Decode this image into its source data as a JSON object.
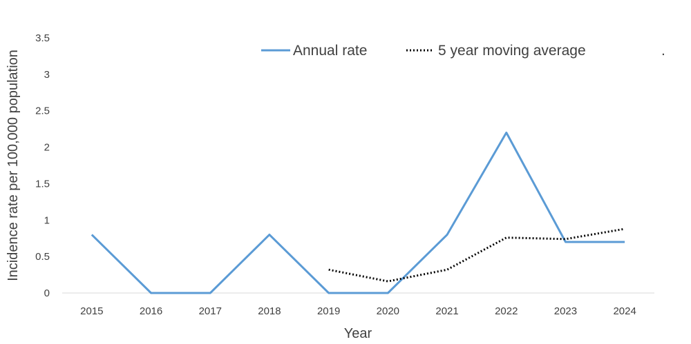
{
  "chart_data": {
    "type": "line",
    "categories": [
      "2015",
      "2016",
      "2017",
      "2018",
      "2019",
      "2020",
      "2021",
      "2022",
      "2023",
      "2024"
    ],
    "series": [
      {
        "name": "Annual rate",
        "color": "#5b9bd5",
        "style": "solid",
        "values": [
          0.8,
          0,
          0,
          0.8,
          0,
          0,
          0.8,
          2.2,
          0.7,
          0.7
        ]
      },
      {
        "name": "5 year moving average",
        "color": "#000000",
        "style": "dotted",
        "values": [
          null,
          null,
          null,
          null,
          0.32,
          0.16,
          0.32,
          0.76,
          0.74,
          0.88
        ]
      }
    ],
    "xlabel": "Year",
    "ylabel": "Incidence rate per 100,000 population",
    "ylim": [
      0,
      3.5
    ],
    "yticks": [
      "0",
      "0.5",
      "1",
      "1.5",
      "2",
      "2.5",
      "3",
      "3.5"
    ],
    "grid": false,
    "legend_position": "top-right",
    "legend_extra": "."
  }
}
